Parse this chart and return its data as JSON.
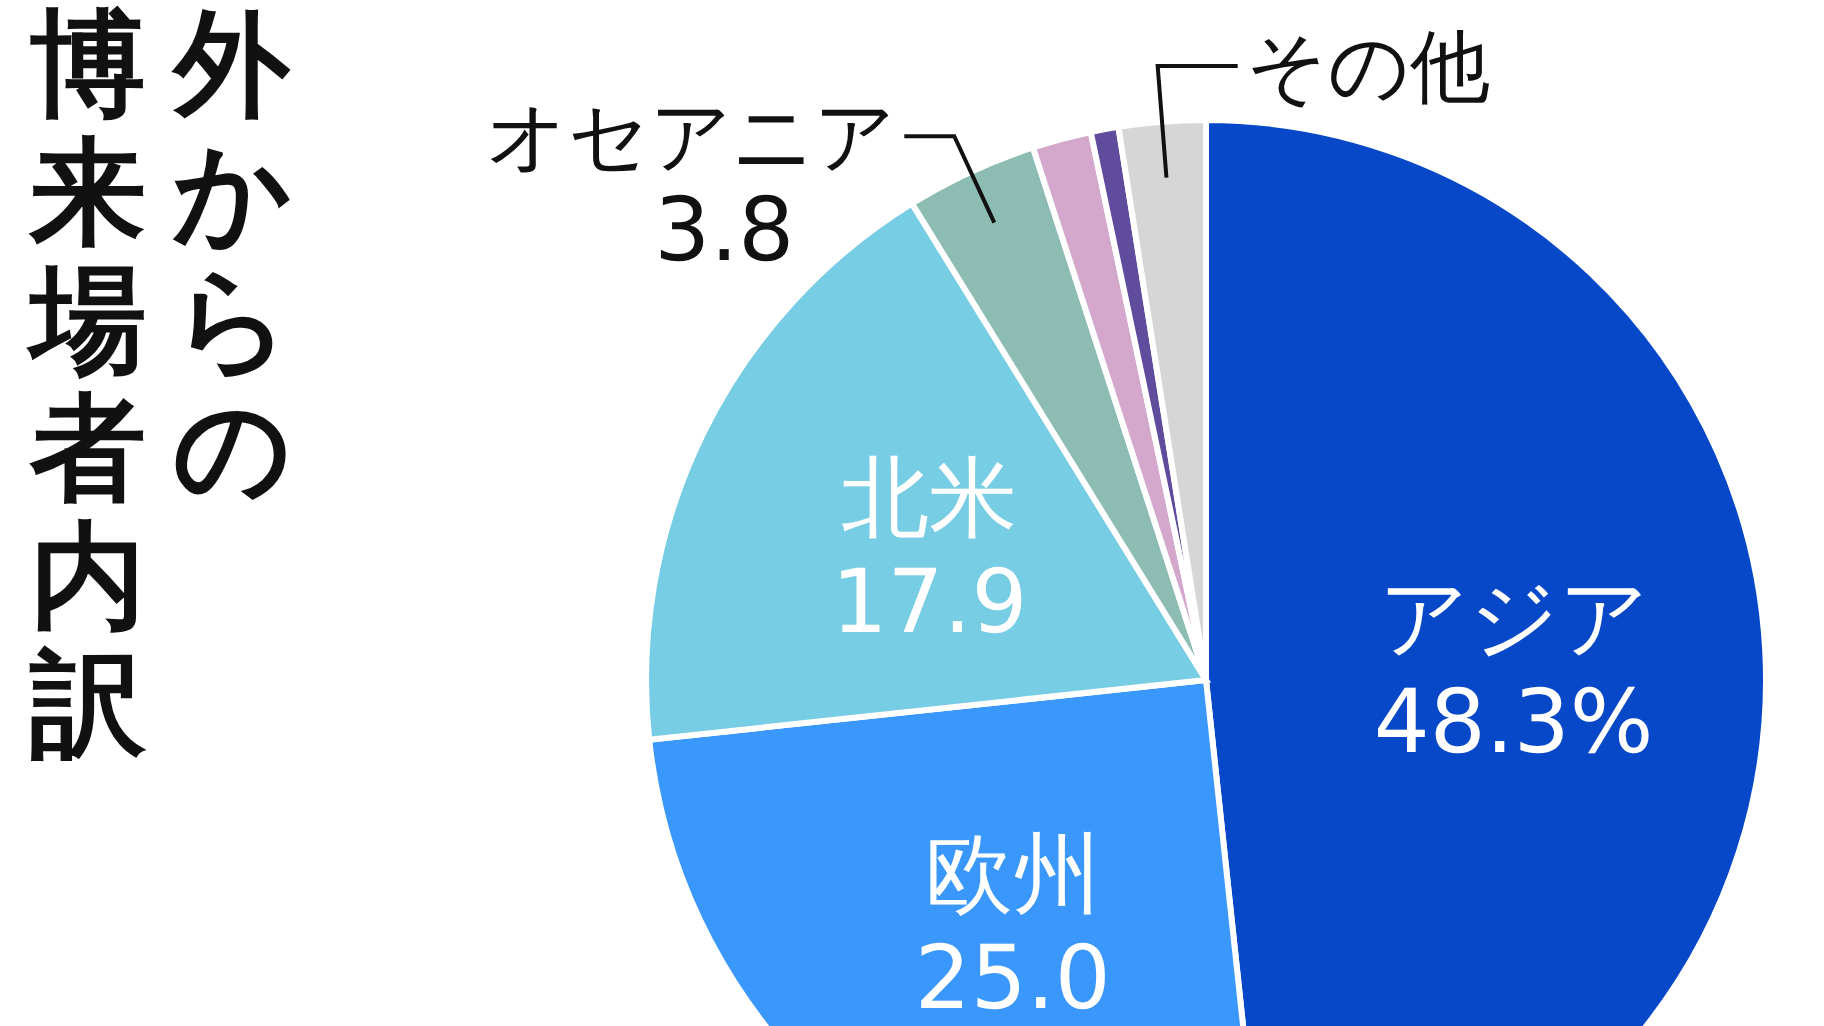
{
  "chart_data": {
    "type": "pie",
    "title": "外からの博来場者内訳",
    "categories": [
      "アジア",
      "欧州",
      "北米",
      "オセアニア",
      null,
      null,
      "その他"
    ],
    "values": [
      48.3,
      25.0,
      17.9,
      3.8,
      1.7,
      0.8,
      2.5
    ],
    "value_labels": [
      "48.3%",
      "25.0",
      "17.9",
      "3.8",
      null,
      null,
      null
    ],
    "colors": [
      "#0748c8",
      "#3a97fb",
      "#77cde3",
      "#8cbcb2",
      "#d4a8cc",
      "#5f4c9c",
      "#d6d6d6"
    ]
  }
}
